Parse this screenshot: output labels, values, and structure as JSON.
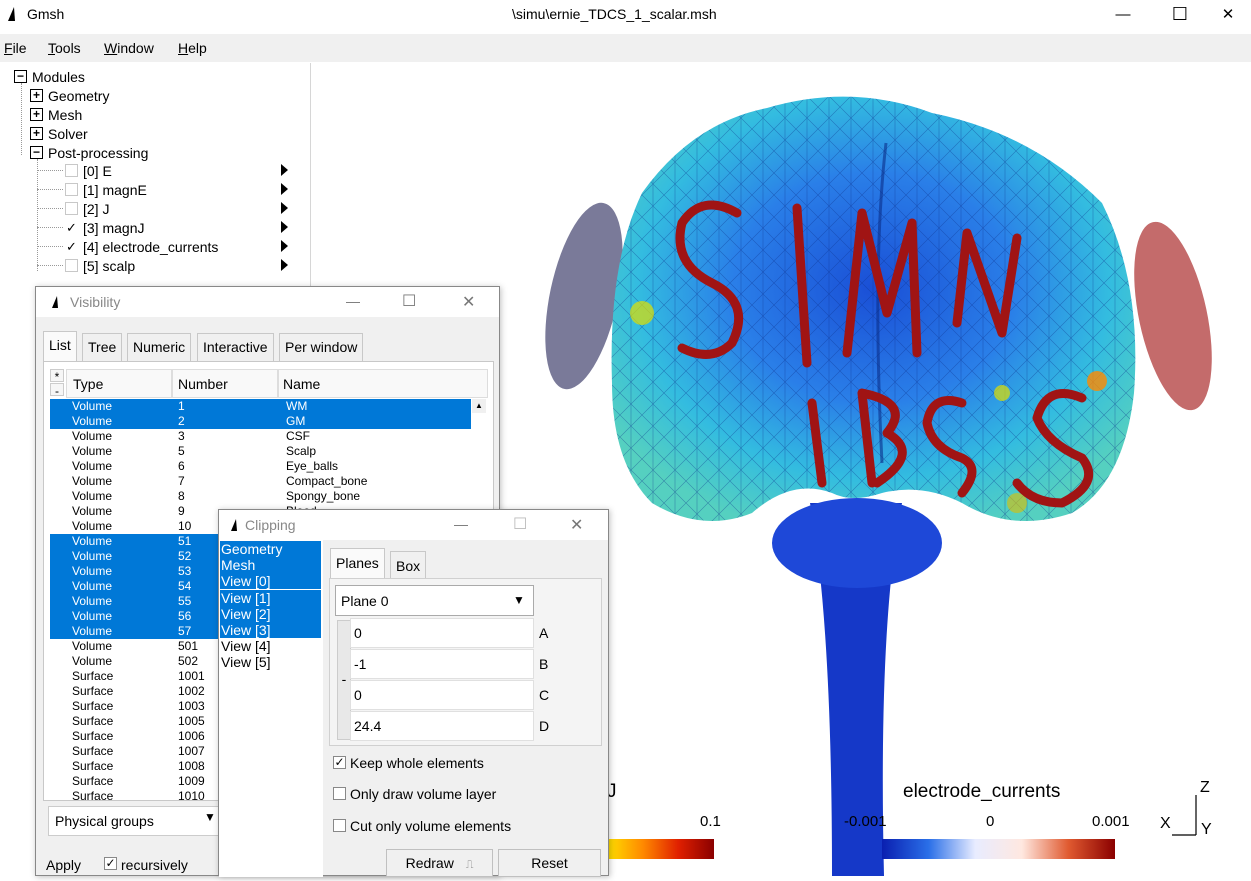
{
  "window": {
    "app_name": "Gmsh",
    "file_title": "\\simu\\ernie_TDCS_1_scalar.msh",
    "minimize": "—",
    "maximize": "☐",
    "close": "✕"
  },
  "menu": [
    {
      "label": "File",
      "accel": "F",
      "rest": "ile"
    },
    {
      "label": "Tools",
      "accel": "T",
      "rest": "ools"
    },
    {
      "label": "Window",
      "accel": "W",
      "rest": "indow"
    },
    {
      "label": "Help",
      "accel": "H",
      "rest": "elp"
    }
  ],
  "tree": {
    "root": "Modules",
    "modules": [
      "Geometry",
      "Mesh",
      "Solver",
      "Post-processing"
    ],
    "views": [
      {
        "label": "[0] E",
        "checked": false
      },
      {
        "label": "[1] magnE",
        "checked": false
      },
      {
        "label": "[2] J",
        "checked": false
      },
      {
        "label": "[3] magnJ",
        "checked": true
      },
      {
        "label": "[4] electrode_currents",
        "checked": true
      },
      {
        "label": "[5] scalp",
        "checked": false
      }
    ]
  },
  "visibility": {
    "title": "Visibility",
    "tabs": [
      "List",
      "Tree",
      "Numeric",
      "Interactive",
      "Per window"
    ],
    "columns": {
      "star": "*",
      "minus": "-",
      "type": "Type",
      "number": "Number",
      "name": "Name"
    },
    "rows": [
      {
        "type": "Volume",
        "number": "1",
        "name": "WM",
        "selected": true
      },
      {
        "type": "Volume",
        "number": "2",
        "name": "GM",
        "selected": true
      },
      {
        "type": "Volume",
        "number": "3",
        "name": "CSF",
        "selected": false
      },
      {
        "type": "Volume",
        "number": "5",
        "name": "Scalp",
        "selected": false
      },
      {
        "type": "Volume",
        "number": "6",
        "name": "Eye_balls",
        "selected": false
      },
      {
        "type": "Volume",
        "number": "7",
        "name": "Compact_bone",
        "selected": false
      },
      {
        "type": "Volume",
        "number": "8",
        "name": "Spongy_bone",
        "selected": false
      },
      {
        "type": "Volume",
        "number": "9",
        "name": "Blood",
        "selected": false
      },
      {
        "type": "Volume",
        "number": "10",
        "name": "",
        "selected": false
      },
      {
        "type": "Volume",
        "number": "51",
        "name": "",
        "selected": true
      },
      {
        "type": "Volume",
        "number": "52",
        "name": "",
        "selected": true
      },
      {
        "type": "Volume",
        "number": "53",
        "name": "",
        "selected": true
      },
      {
        "type": "Volume",
        "number": "54",
        "name": "",
        "selected": true
      },
      {
        "type": "Volume",
        "number": "55",
        "name": "",
        "selected": true
      },
      {
        "type": "Volume",
        "number": "56",
        "name": "",
        "selected": true
      },
      {
        "type": "Volume",
        "number": "57",
        "name": "",
        "selected": true
      },
      {
        "type": "Volume",
        "number": "501",
        "name": "",
        "selected": false
      },
      {
        "type": "Volume",
        "number": "502",
        "name": "",
        "selected": false
      },
      {
        "type": "Surface",
        "number": "1001",
        "name": "",
        "selected": false
      },
      {
        "type": "Surface",
        "number": "1002",
        "name": "",
        "selected": false
      },
      {
        "type": "Surface",
        "number": "1003",
        "name": "",
        "selected": false
      },
      {
        "type": "Surface",
        "number": "1005",
        "name": "",
        "selected": false
      },
      {
        "type": "Surface",
        "number": "1006",
        "name": "",
        "selected": false
      },
      {
        "type": "Surface",
        "number": "1007",
        "name": "",
        "selected": false
      },
      {
        "type": "Surface",
        "number": "1008",
        "name": "",
        "selected": false
      },
      {
        "type": "Surface",
        "number": "1009",
        "name": "",
        "selected": false
      },
      {
        "type": "Surface",
        "number": "1010",
        "name": "",
        "selected": false
      }
    ],
    "group_select": "Physical groups",
    "apply": "Apply",
    "recursively": "recursively"
  },
  "clipping": {
    "title": "Clipping",
    "items": [
      {
        "label": "Geometry",
        "selected": true
      },
      {
        "label": "Mesh",
        "selected": true
      },
      {
        "label": "View [0]",
        "selected": true
      },
      {
        "label": "View [1]",
        "selected": true
      },
      {
        "label": "View [2]",
        "selected": true
      },
      {
        "label": "View [3]",
        "selected": true
      },
      {
        "label": "View [4]",
        "selected": false
      },
      {
        "label": "View [5]",
        "selected": false
      }
    ],
    "tabs": [
      "Planes",
      "Box"
    ],
    "plane_select": "Plane 0",
    "minus_btn": "-",
    "coeffs": [
      {
        "value": "0",
        "label": "A"
      },
      {
        "value": "-1",
        "label": "B"
      },
      {
        "value": "0",
        "label": "C"
      },
      {
        "value": "24.4",
        "label": "D"
      }
    ],
    "options": [
      {
        "label": "Keep whole elements",
        "checked": true
      },
      {
        "label": "Only draw volume layer",
        "checked": false
      },
      {
        "label": "Cut only volume elements",
        "checked": false
      }
    ],
    "redraw": "Redraw",
    "reset": "Reset"
  },
  "graphics": {
    "letters": "SIMNIBS",
    "legend_left": {
      "title": "J",
      "ticks": [
        "0.1"
      ]
    },
    "legend_right": {
      "title": "electrode_currents",
      "ticks": [
        "-0.001",
        "0",
        "0.001"
      ]
    },
    "axes": {
      "x": "X",
      "y": "Y",
      "z": "Z"
    }
  },
  "colors": {
    "selection": "#0078d7",
    "brain_high": "#ff2a00",
    "letters": "#a01414",
    "electrode_left": "#7a7a99",
    "electrode_right": "#c46b6b"
  }
}
